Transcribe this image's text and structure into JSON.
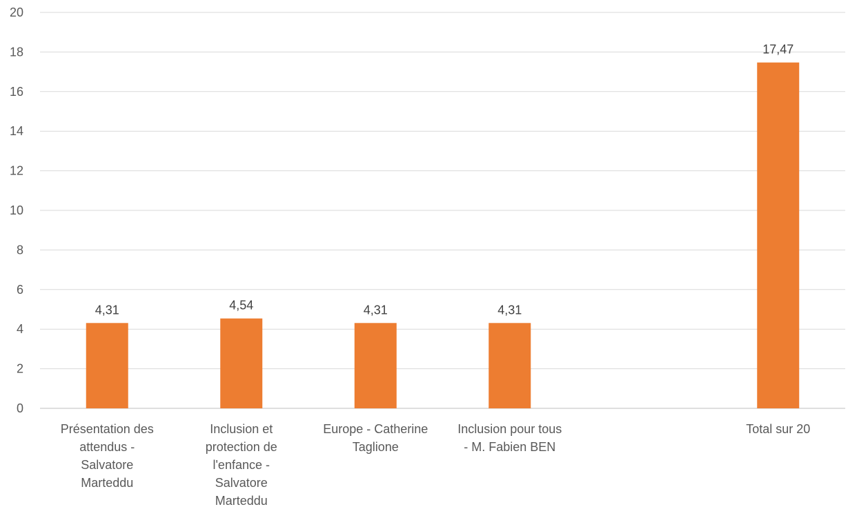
{
  "chart_data": {
    "type": "bar",
    "title": "",
    "xlabel": "",
    "ylabel": "",
    "ylim": [
      0,
      20
    ],
    "yticks": [
      "0",
      "2",
      "4",
      "6",
      "8",
      "10",
      "12",
      "14",
      "16",
      "18",
      "20"
    ],
    "grid": true,
    "categories": [
      [
        "Présentation des",
        "attendus -",
        "Salvatore",
        "Marteddu"
      ],
      [
        "Inclusion et",
        "protection de",
        "l'enfance -",
        "Salvatore",
        "Marteddu"
      ],
      [
        "Europe - Catherine",
        "Taglione"
      ],
      [
        "Inclusion pour tous",
        "- M. Fabien BEN"
      ],
      [],
      [
        "Total sur 20"
      ]
    ],
    "values": [
      4.31,
      4.54,
      4.31,
      4.31,
      null,
      17.47
    ],
    "data_labels": [
      "4,31",
      "4,54",
      "4,31",
      "4,31",
      "",
      "17,47"
    ],
    "colors": {
      "bar": "#ED7D31",
      "grid": "#D9D9D9",
      "axis": "#BFBFBF"
    }
  }
}
